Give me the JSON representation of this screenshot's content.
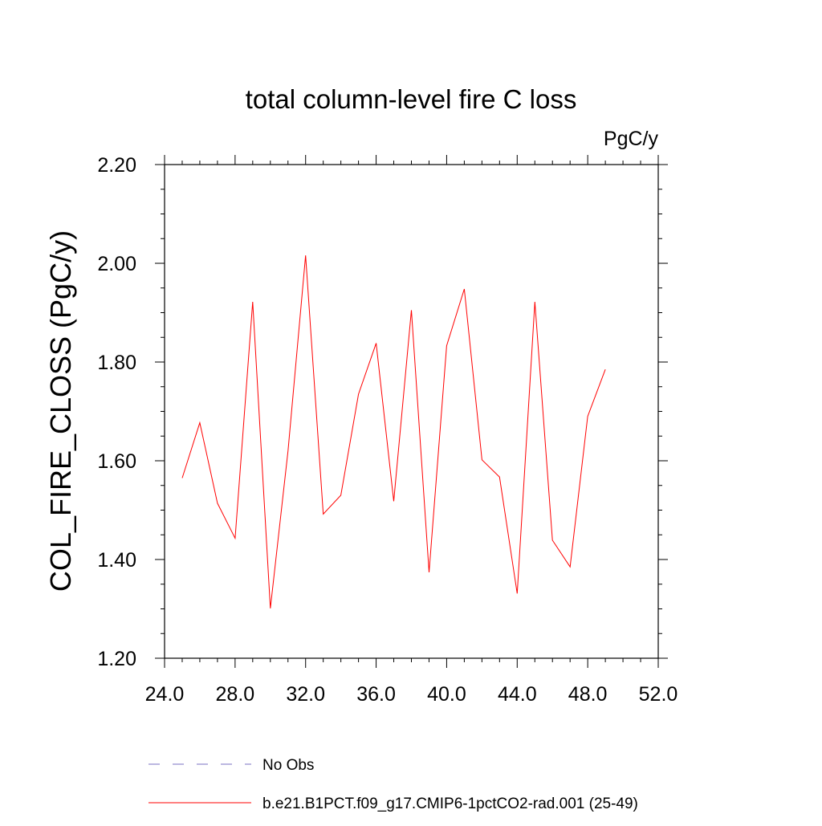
{
  "chart_data": {
    "type": "line",
    "title": "total column-level fire C loss",
    "units": "PgC/y",
    "xlabel": "",
    "ylabel": "COL_FIRE_CLOSS  (PgC/y)",
    "xlim": [
      24.0,
      52.0
    ],
    "ylim": [
      1.2,
      2.2
    ],
    "x_ticks": [
      24.0,
      28.0,
      32.0,
      36.0,
      40.0,
      44.0,
      48.0,
      52.0
    ],
    "x_tick_labels": [
      "24.0",
      "28.0",
      "32.0",
      "36.0",
      "40.0",
      "44.0",
      "48.0",
      "52.0"
    ],
    "y_ticks": [
      1.2,
      1.4,
      1.6,
      1.8,
      2.0,
      2.2
    ],
    "y_tick_labels": [
      "1.20",
      "1.40",
      "1.60",
      "1.80",
      "2.00",
      "2.20"
    ],
    "grid": false,
    "legend_position": "bottom",
    "series": [
      {
        "name": "b.e21.B1PCT.f09_g17.CMIP6-1pctCO2-rad.001 (25-49)",
        "color": "#ff0000",
        "style": "solid",
        "x": [
          25,
          26,
          27,
          28,
          29,
          30,
          31,
          32,
          33,
          34,
          35,
          36,
          37,
          38,
          39,
          40,
          41,
          42,
          43,
          44,
          45,
          46,
          47,
          48,
          49
        ],
        "y": [
          1.565,
          1.677,
          1.514,
          1.443,
          1.922,
          1.301,
          1.62,
          2.016,
          1.492,
          1.53,
          1.735,
          1.838,
          1.518,
          1.905,
          1.374,
          1.833,
          1.948,
          1.602,
          1.567,
          1.331,
          1.922,
          1.439,
          1.385,
          1.69,
          1.785
        ]
      },
      {
        "name": "No Obs",
        "color": "#7a6fc0",
        "style": "dashed",
        "x": [],
        "y": []
      }
    ]
  }
}
